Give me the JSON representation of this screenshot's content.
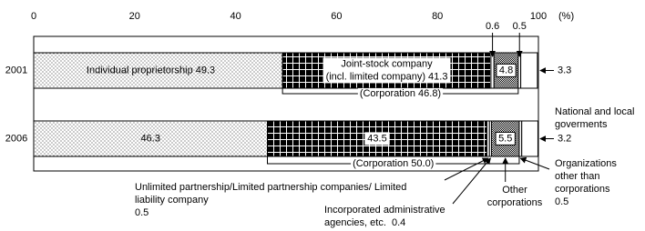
{
  "chart_data": {
    "type": "stacked-bar-horizontal",
    "categories": [
      "2001",
      "2006"
    ],
    "xlim": [
      0,
      100
    ],
    "xticks": [
      0,
      20,
      40,
      60,
      80,
      100
    ],
    "xlabel": "(%)",
    "series": [
      {
        "color": "#000000",
        "pattern": "dots",
        "values": [
          49.3,
          46.3
        ],
        "value_labels": [
          "Individual proprietorship 49.3",
          "46.3"
        ]
      },
      {
        "color": "#000000",
        "pattern": "grid",
        "values": [
          41.3,
          43.5
        ],
        "value_labels": [
          [
            "Joint-stock company",
            "(incl. limited company) 41.3"
          ],
          "43.5"
        ]
      },
      {
        "name": "Unlimited partnership/Limited partnership companies/ Limited liability company",
        "color": "#ffffff",
        "pattern": "none",
        "values": [
          0.6,
          0.5
        ]
      },
      {
        "name": "Incorporated administrative agencies, etc.",
        "color": "#ffffff",
        "pattern": "none",
        "values": [
          null,
          0.4
        ]
      },
      {
        "name": "Other corporations",
        "color": "#000000",
        "pattern": "checker",
        "values": [
          4.8,
          5.5
        ]
      },
      {
        "name": "Organizations other than corporations",
        "color": "#ffffff",
        "pattern": "none",
        "values": [
          0.5,
          0.5
        ]
      },
      {
        "name": "National and local goverments",
        "color": "#ffffff",
        "pattern": "none",
        "values": [
          3.3,
          3.2
        ]
      }
    ],
    "corporation_labels": [
      "(Corporation 46.8)",
      "(Corporation 50.0)"
    ]
  }
}
